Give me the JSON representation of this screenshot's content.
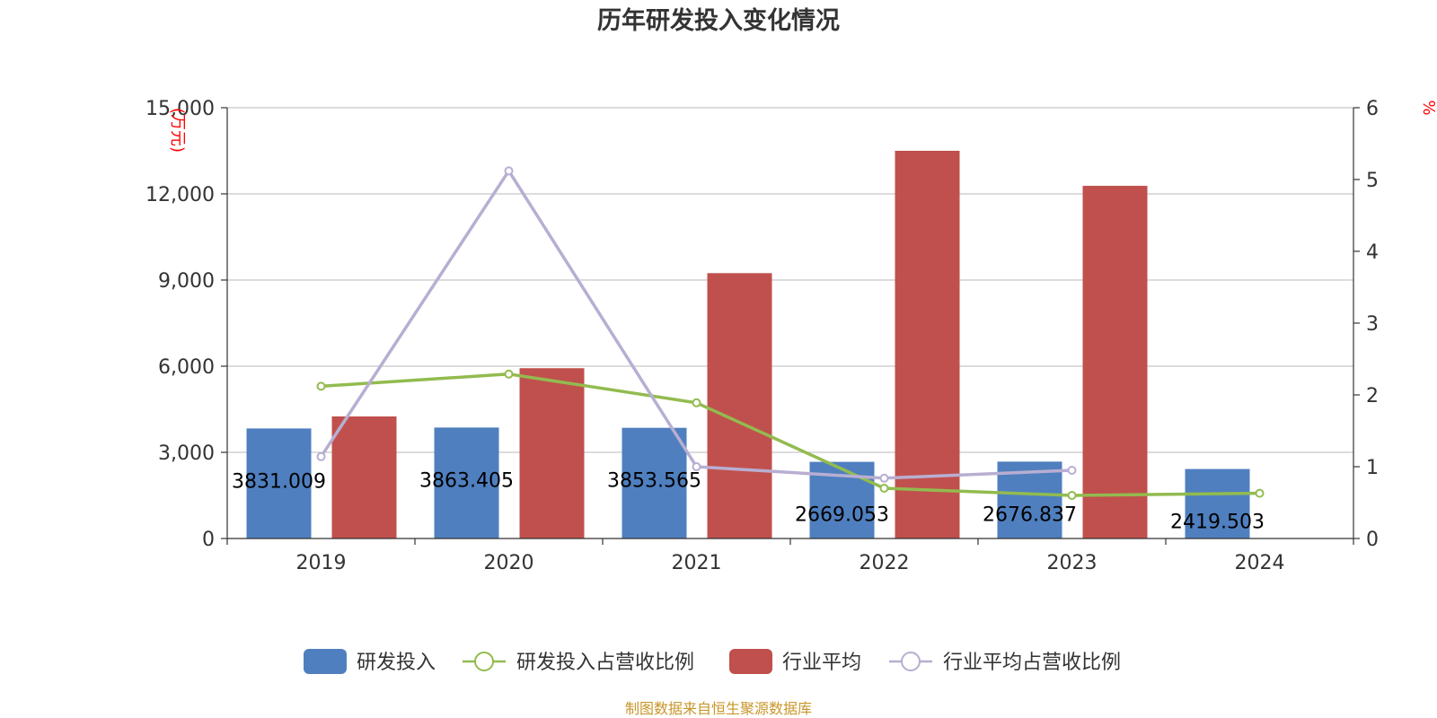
{
  "chart_data": {
    "type": "bar",
    "title": "历年研发投入变化情况",
    "categories": [
      "2019",
      "2020",
      "2021",
      "2022",
      "2023",
      "2024"
    ],
    "y_left": {
      "unit": "(万元)",
      "ylim": [
        0,
        15000
      ],
      "ticks": [
        "0",
        "3,000",
        "6,000",
        "9,000",
        "12,000",
        "15,000"
      ]
    },
    "y_right": {
      "unit": "%",
      "ylim": [
        0,
        6
      ],
      "ticks": [
        "0",
        "1",
        "2",
        "3",
        "4",
        "5",
        "6"
      ]
    },
    "series": [
      {
        "name": "研发投入",
        "kind": "bar",
        "axis": "left",
        "color": "#4f7fbf",
        "values": [
          3831.009,
          3863.405,
          3853.565,
          2669.053,
          2676.837,
          2419.503
        ],
        "labels": [
          "3831.009",
          "3863.405",
          "3853.565",
          "2669.053",
          "2676.837",
          "2419.503"
        ]
      },
      {
        "name": "研发投入占营收比例",
        "kind": "line",
        "axis": "right",
        "color": "#92bb4f",
        "values": [
          2.12,
          2.29,
          1.89,
          0.7,
          0.6,
          0.63
        ]
      },
      {
        "name": "行业平均",
        "kind": "bar",
        "axis": "left",
        "color": "#c0504d",
        "values": [
          4250,
          5930,
          9240,
          13500,
          12280,
          null
        ]
      },
      {
        "name": "行业平均占营收比例",
        "kind": "line",
        "axis": "right",
        "color": "#b8aed2",
        "values": [
          1.14,
          5.12,
          1.0,
          0.84,
          0.95,
          null
        ]
      }
    ],
    "grid": true,
    "legend": "bottom"
  },
  "source": "制图数据来自恒生聚源数据库"
}
